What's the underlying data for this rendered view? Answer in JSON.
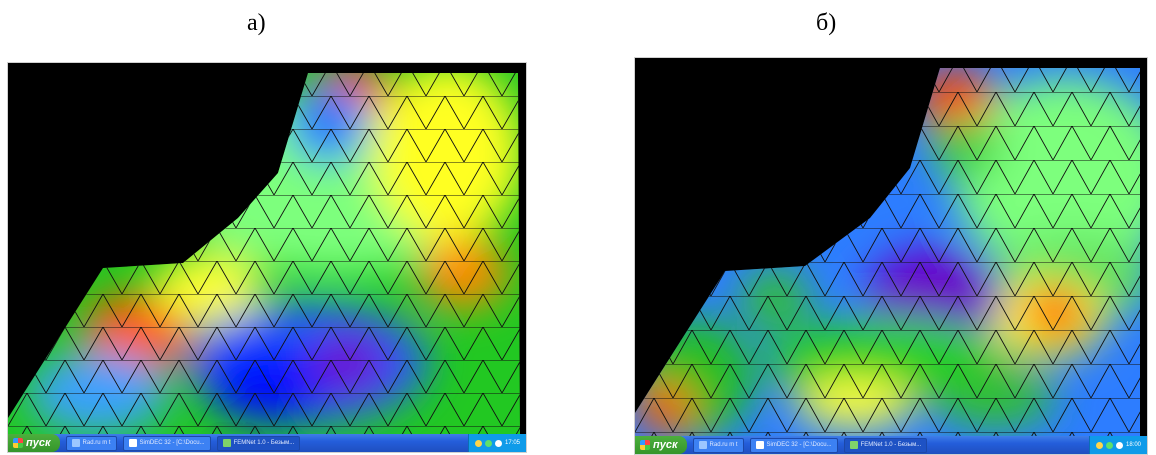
{
  "captions": {
    "a": "а)",
    "b": "б)"
  },
  "screens": {
    "a": {
      "taskbar": {
        "start_label": "пуск",
        "tasks": [
          "Rad.ru m t",
          "SimDEC 32 - [C:\\Docu...",
          "FEMNet 1.0 - Безым..."
        ],
        "tray_time": "17:05"
      }
    },
    "b": {
      "taskbar": {
        "start_label": "пуск",
        "tasks": [
          "Rad.ru m t",
          "SimDEC 32 - [C:\\Docu...",
          "FEMNet 1.0 - Безым..."
        ],
        "tray_time": "18:00"
      }
    }
  },
  "colors": {
    "background": "#000000",
    "taskbar": "#245edb",
    "start_button": "#35952a",
    "field_palette": [
      "#1e6fff",
      "#2060ff",
      "#00c000",
      "#60ff60",
      "#ffff00",
      "#ff8000",
      "#ff2000",
      "#7000c0",
      "#0000ff"
    ]
  }
}
